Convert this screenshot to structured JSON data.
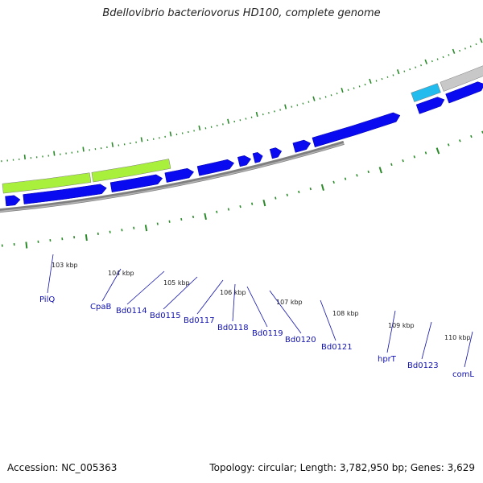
{
  "title": "Bdellovibrio bacteriovorus HD100, complete genome",
  "footer": {
    "accession": "Accession: NC_005363",
    "summary": "Topology: circular; Length: 3,782,950 bp; Genes: 3,629"
  },
  "colors": {
    "forward_gene": "#0a0af0",
    "reverse_gene": "#a8f03c",
    "reverse_rna": "#22bbee",
    "pseudo_gene": "#c8c8c8",
    "backbone": "#7f7f7f",
    "tick": "#2a8a2a",
    "label": "#1010b0"
  },
  "ticks": [
    "103 kbp",
    "104 kbp",
    "105 kbp",
    "106 kbp",
    "107 kbp",
    "108 kbp",
    "109 kbp",
    "110 kbp"
  ],
  "genes": [
    "PilQ",
    "CpaB",
    "Bd0114",
    "Bd0115",
    "Bd0117",
    "Bd0118",
    "Bd0119",
    "Bd0120",
    "Bd0121",
    "hprT",
    "Bd0123",
    "comL"
  ]
}
